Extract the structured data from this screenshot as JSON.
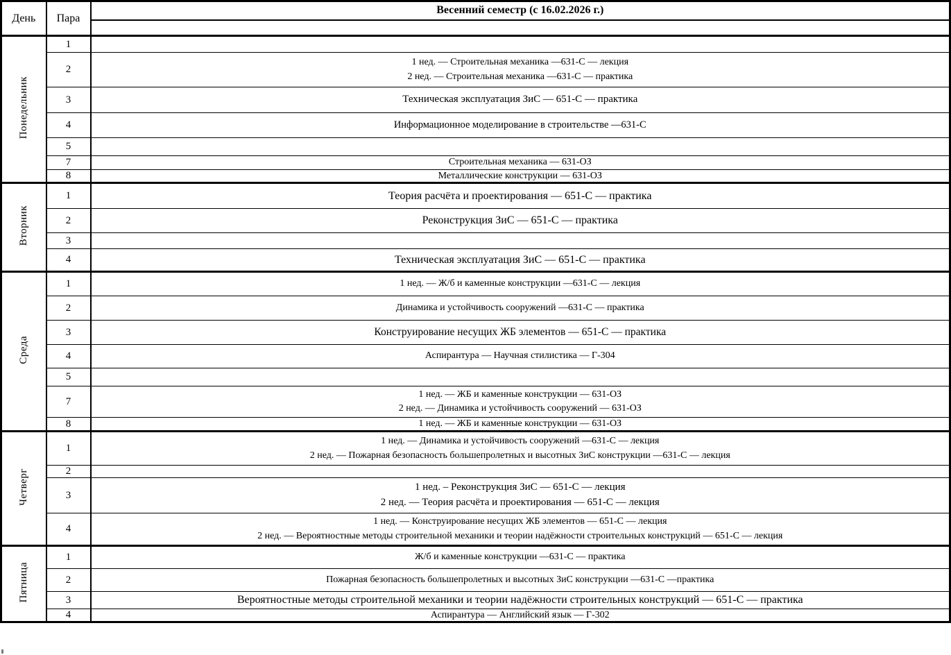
{
  "header": {
    "day_col": "День",
    "period_col": "Пара",
    "semester_title": "Весенний семестр (с 16.02.2026 г.)"
  },
  "colors": {
    "border": "#000000",
    "background": "#ffffff",
    "text": "#000000"
  },
  "days": [
    {
      "key": "mon",
      "name": "Понедельник",
      "rows": [
        {
          "period": "1",
          "lines": []
        },
        {
          "period": "2",
          "lines": [
            "1 нед. — Строительная механика —631-С — лекция",
            "2 нед. — Строительная механика —631-С — практика"
          ]
        },
        {
          "period": "3",
          "lines": [
            "Техническая эксплуатация ЗиС — 651-С — практика"
          ]
        },
        {
          "period": "4",
          "lines": [
            "Информационное моделирование в строительстве —631-С"
          ]
        },
        {
          "period": "5",
          "lines": []
        },
        {
          "period": "7",
          "lines": [
            "Строительная механика — 631-ОЗ"
          ]
        },
        {
          "period": "8",
          "lines": [
            "Металлические конструкции — 631-ОЗ"
          ]
        }
      ]
    },
    {
      "key": "tue",
      "name": "Вторник",
      "rows": [
        {
          "period": "1",
          "lines": [
            "Теория расчёта и проектирования — 651-С — практика"
          ]
        },
        {
          "period": "2",
          "lines": [
            "Реконструкция ЗиС — 651-С — практика"
          ]
        },
        {
          "period": "3",
          "lines": []
        },
        {
          "period": "4",
          "lines": [
            "Техническая эксплуатация ЗиС — 651-С — практика"
          ]
        }
      ]
    },
    {
      "key": "wed",
      "name": "Среда",
      "rows": [
        {
          "period": "1",
          "lines": [
            "1 нед. — Ж/б и каменные конструкции —631-С — лекция"
          ]
        },
        {
          "period": "2",
          "lines": [
            "Динамика и устойчивость сооружений —631-С — практика"
          ]
        },
        {
          "period": "3",
          "lines": [
            "Конструирование несущих ЖБ элементов — 651-С — практика"
          ]
        },
        {
          "period": "4",
          "lines": [
            "Аспирантура — Научная стилистика — Г-304"
          ]
        },
        {
          "period": "5",
          "lines": []
        },
        {
          "period": "7",
          "lines": [
            "1 нед. — ЖБ и каменные конструкции — 631-ОЗ",
            "2 нед. — Динамика и устойчивость сооружений — 631-ОЗ"
          ]
        },
        {
          "period": "8",
          "lines": [
            "1 нед. — ЖБ и каменные конструкции — 631-ОЗ"
          ]
        }
      ]
    },
    {
      "key": "thu",
      "name": "Четверг",
      "rows": [
        {
          "period": "1",
          "lines": [
            "1 нед. — Динамика и устойчивость сооружений —631-С — лекция",
            "2 нед. — Пожарная безопасность большепролетных и высотных ЗиС конструкции —631-С — лекция"
          ]
        },
        {
          "period": "2",
          "lines": []
        },
        {
          "period": "3",
          "lines": [
            "1 нед. – Реконструкция ЗиС — 651-С — лекция",
            "2 нед. — Теория расчёта и проектирования — 651-С — лекция"
          ]
        },
        {
          "period": "4",
          "lines": [
            "1 нед. — Конструирование несущих ЖБ элементов — 651-С — лекция",
            "2 нед. — Вероятностные методы строительной механики и теории надёжности строительных конструкций — 651-С — лекция"
          ]
        }
      ]
    },
    {
      "key": "fri",
      "name": "Пятница",
      "rows": [
        {
          "period": "1",
          "lines": [
            "Ж/б и каменные конструкции —631-С — практика"
          ]
        },
        {
          "period": "2",
          "lines": [
            "Пожарная безопасность большепролетных и высотных ЗиС конструкции —631-С —практика"
          ]
        },
        {
          "period": "3",
          "lines": [
            "Вероятностные методы строительной механики и теории надёжности строительных конструкций — 651-С — практика"
          ]
        },
        {
          "period": "4",
          "lines": [
            "Аспирантура — Английский язык — Г-302"
          ]
        }
      ]
    }
  ]
}
